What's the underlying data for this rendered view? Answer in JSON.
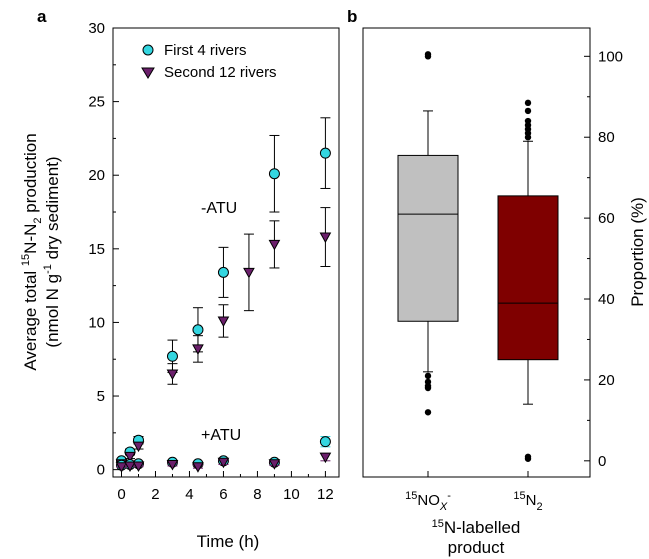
{
  "chart_data": [
    {
      "panel": "a",
      "type": "scatter",
      "xlabel": "Time (h)",
      "ylabel_line1": {
        "pre": "Average total ",
        "sup": "15",
        "mid": "N-N",
        "sub": "2",
        "post": " production"
      },
      "ylabel_line2": {
        "pre": "(nmol N g",
        "sup": "-1",
        "post": " dry sediment)"
      },
      "xlim": [
        -0.5,
        12.8
      ],
      "ylim": [
        -0.5,
        30
      ],
      "xticks": [
        0,
        2,
        4,
        6,
        8,
        10,
        12
      ],
      "yticks": [
        0,
        5,
        10,
        15,
        20,
        25,
        30
      ],
      "annotations": [
        "-ATU",
        "+ATU"
      ],
      "colors": {
        "first": "#33d6e0",
        "second": "#6b1f6b"
      },
      "series": [
        {
          "name": "First 4 rivers",
          "marker": "circle",
          "treatment": "-ATU",
          "x": [
            0,
            0.5,
            1,
            3,
            4.5,
            6,
            9,
            12
          ],
          "y": [
            0.6,
            1.2,
            2.0,
            7.7,
            9.5,
            13.4,
            20.1,
            21.5
          ],
          "err": [
            0.15,
            0.2,
            0.25,
            1.1,
            1.5,
            1.7,
            2.6,
            2.4
          ]
        },
        {
          "name": "Second 12 rivers",
          "marker": "triangle-down",
          "treatment": "-ATU",
          "x": [
            0,
            0.5,
            1,
            3,
            4.5,
            6,
            7.5,
            9,
            12
          ],
          "y": [
            0.4,
            0.9,
            1.6,
            6.5,
            8.2,
            10.1,
            13.4,
            15.3,
            15.8
          ],
          "err": [
            0.1,
            0.15,
            0.2,
            0.7,
            0.9,
            1.1,
            2.6,
            1.6,
            2.0
          ]
        },
        {
          "name": "First 4 rivers",
          "marker": "circle",
          "treatment": "+ATU",
          "x": [
            0,
            0.5,
            1,
            3,
            4.5,
            6,
            9,
            12
          ],
          "y": [
            0.3,
            0.35,
            0.4,
            0.5,
            0.4,
            0.6,
            0.5,
            1.9
          ],
          "err": [
            0.05,
            0.05,
            0.05,
            0.1,
            0.1,
            0.15,
            0.15,
            0.35
          ]
        },
        {
          "name": "Second 12 rivers",
          "marker": "triangle-down",
          "treatment": "+ATU",
          "x": [
            0,
            0.5,
            1,
            3,
            4.5,
            6,
            9,
            12
          ],
          "y": [
            0.2,
            0.25,
            0.25,
            0.35,
            0.2,
            0.5,
            0.4,
            0.85
          ],
          "err": [
            0.05,
            0.05,
            0.05,
            0.1,
            0.1,
            0.15,
            0.12,
            0.25
          ]
        }
      ]
    },
    {
      "panel": "b",
      "type": "box",
      "xlabel_line1": {
        "sup": "15",
        "post": "N-labelled"
      },
      "xlabel_line2": "product",
      "ylabel": "Proportion (%)",
      "ylim": [
        -4,
        107
      ],
      "yticks": [
        0,
        20,
        40,
        60,
        80,
        100
      ],
      "categories": [
        {
          "sup": "15",
          "base": "NO",
          "sub": "X",
          "supPost": "-"
        },
        {
          "sup": "15",
          "base": "N",
          "sub": "2",
          "supPost": ""
        }
      ],
      "boxes": [
        {
          "color": "#c0c0c0",
          "whisker_low": 22,
          "q1": 34.5,
          "median": 61,
          "q3": 75.5,
          "whisker_high": 86.5,
          "outliers": [
            100,
            100.5,
            21,
            19.5,
            18.5,
            18,
            12
          ]
        },
        {
          "color": "#7f0000",
          "whisker_low": 14,
          "q1": 25,
          "median": 39,
          "q3": 65.5,
          "whisker_high": 79,
          "outliers": [
            88.5,
            86.5,
            84,
            83,
            82,
            81,
            80,
            1,
            0.5
          ]
        }
      ]
    }
  ],
  "labels": {
    "panel_a": "a",
    "panel_b": "b"
  }
}
